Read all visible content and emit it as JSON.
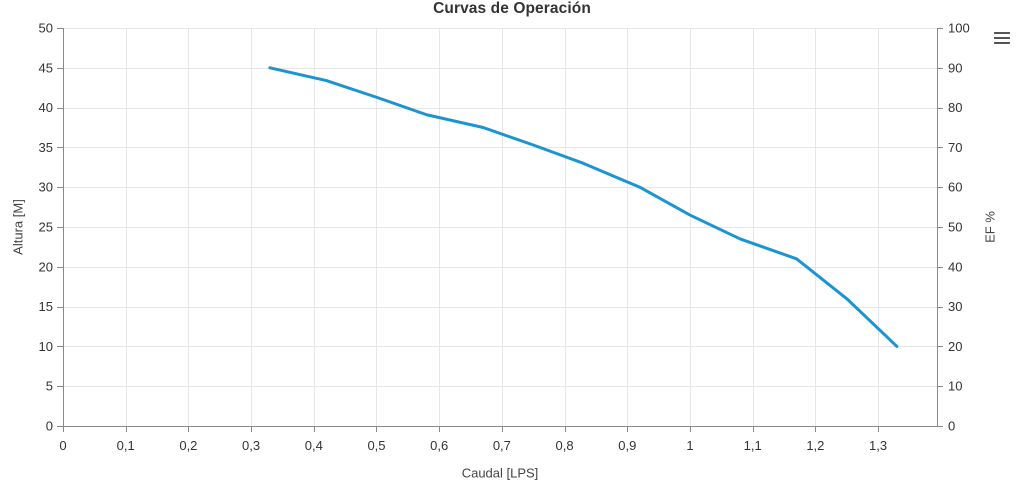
{
  "chart_data": {
    "type": "line",
    "title": "Curvas de Operación",
    "xlabel": "Caudal [LPS]",
    "ylabel": "Altura [M]",
    "ylabel_right": "EF %",
    "xlim": [
      0,
      1.394
    ],
    "ylim": [
      0,
      50
    ],
    "ylim_right": [
      0,
      100
    ],
    "grid": true,
    "legend_position": "none",
    "x_tick_values": [
      0,
      0.1,
      0.2,
      0.3,
      0.4,
      0.5,
      0.6,
      0.7,
      0.8,
      0.9,
      1.0,
      1.1,
      1.2,
      1.3
    ],
    "x_tick_labels": [
      "0",
      "0,1",
      "0,2",
      "0,3",
      "0,4",
      "0,5",
      "0,6",
      "0,7",
      "0,8",
      "0,9",
      "1",
      "1,1",
      "1,2",
      "1,3"
    ],
    "y_tick_values_left": [
      0,
      5,
      10,
      15,
      20,
      25,
      30,
      35,
      40,
      45,
      50
    ],
    "y_tick_values_right": [
      0,
      10,
      20,
      30,
      40,
      50,
      60,
      70,
      80,
      90,
      100
    ],
    "series": [
      {
        "name": "Altura",
        "axis": "left",
        "color": "#1d94d2",
        "x": [
          0.33,
          0.42,
          0.5,
          0.58,
          0.67,
          0.75,
          0.83,
          0.92,
          1.0,
          1.08,
          1.17,
          1.25,
          1.33
        ],
        "y": [
          45.0,
          43.4,
          41.3,
          39.1,
          37.5,
          35.3,
          33.0,
          30.0,
          26.5,
          23.5,
          21.0,
          16.0,
          10.0
        ]
      }
    ]
  },
  "controls": {
    "context_menu_icon": "hamburger-menu"
  },
  "colors": {
    "line": "#1d94d2",
    "grid": "#e6e6e6",
    "axis": "#8a8a8a",
    "tick": "#8a8a8a",
    "text": "#333333"
  }
}
